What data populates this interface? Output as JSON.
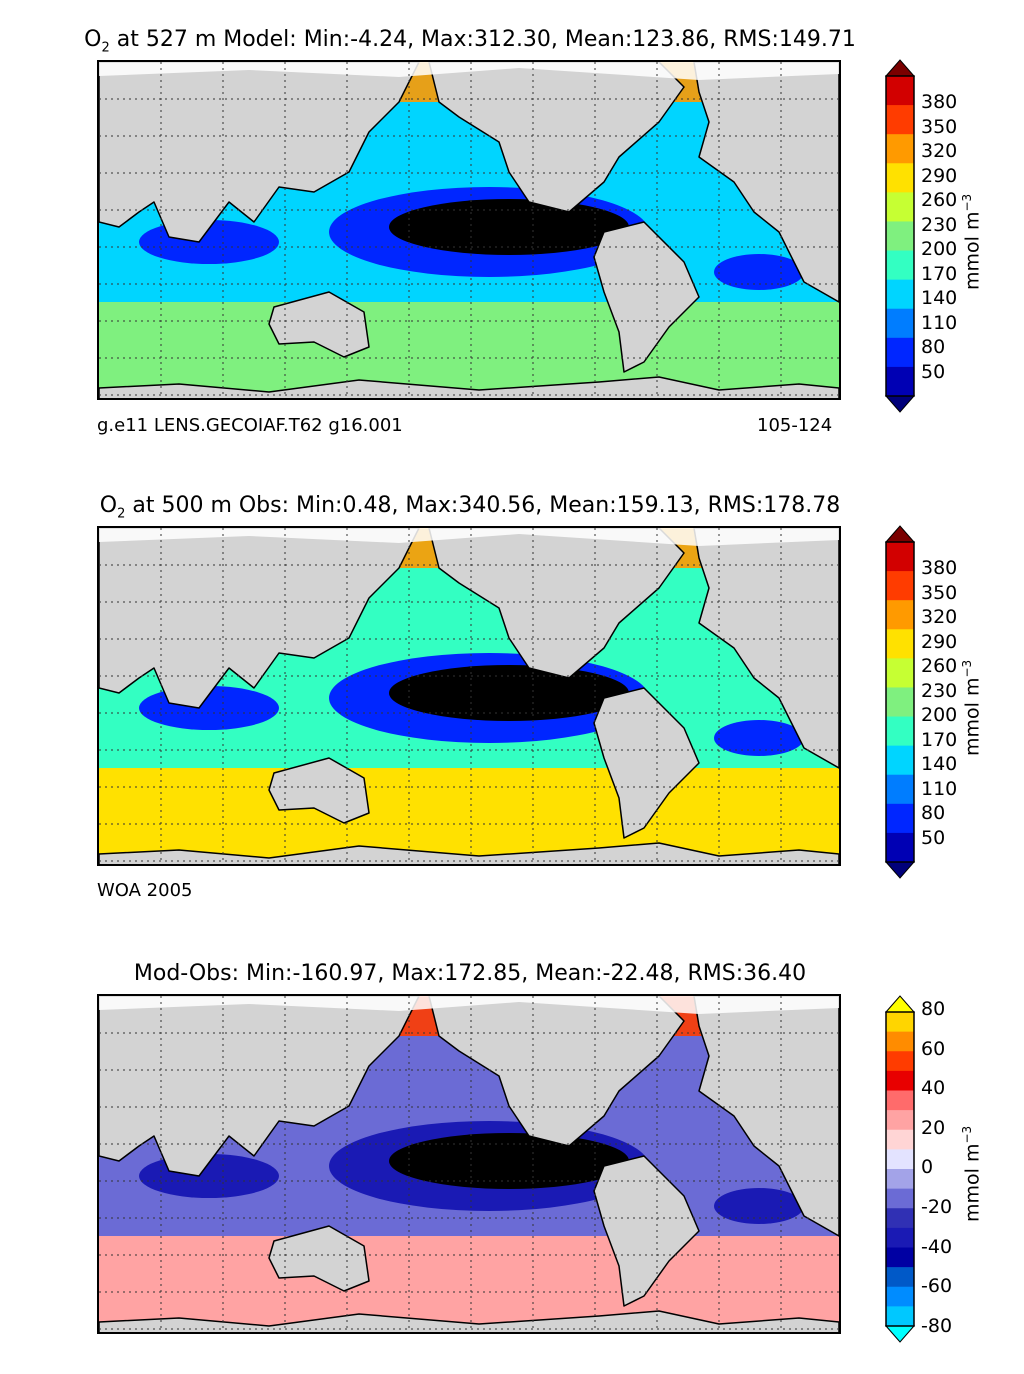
{
  "chart_data": [
    {
      "type": "heatmap",
      "title_species": "O",
      "title_sub": "2",
      "title_rest": " at 527 m Model: Min:-4.24, Max:312.30, Mean:123.86, RMS:149.71",
      "colorbar_ticks": [
        "380",
        "350",
        "320",
        "290",
        "260",
        "230",
        "200",
        "170",
        "140",
        "110",
        "80",
        "50"
      ],
      "colorbar_colors": [
        "#7a0000",
        "#d20000",
        "#ff3c00",
        "#ff9a00",
        "#ffe100",
        "#c6ff33",
        "#7ff07f",
        "#33ffc2",
        "#00d5ff",
        "#007dff",
        "#0026ff",
        "#0000b4",
        "#00007a"
      ],
      "unit_label": "mmol m",
      "unit_exp": "−3",
      "footer_left": "g.e11 LENS.GECOIAF.T62 g16.001",
      "footer_right": "105-124",
      "map_colors": {
        "land": "#d3d3d3",
        "ice": "#ffffff",
        "deep": "#000000",
        "low": "#0026ff",
        "mid": "#00d5ff",
        "high": "#7ff07f",
        "north": "#ff9a00"
      }
    },
    {
      "type": "heatmap",
      "title_species": "O",
      "title_sub": "2",
      "title_rest": " at 500 m Obs: Min:0.48, Max:340.56, Mean:159.13, RMS:178.78",
      "colorbar_ticks": [
        "380",
        "350",
        "320",
        "290",
        "260",
        "230",
        "200",
        "170",
        "140",
        "110",
        "80",
        "50"
      ],
      "colorbar_colors": [
        "#7a0000",
        "#d20000",
        "#ff3c00",
        "#ff9a00",
        "#ffe100",
        "#c6ff33",
        "#7ff07f",
        "#33ffc2",
        "#00d5ff",
        "#007dff",
        "#0026ff",
        "#0000b4",
        "#00007a"
      ],
      "unit_label": "mmol m",
      "unit_exp": "−3",
      "footer_left": "WOA 2005",
      "map_colors": {
        "land": "#d3d3d3",
        "ice": "#ffffff",
        "deep": "#000000",
        "low": "#0026ff",
        "mid": "#33ffc2",
        "high": "#ffe100",
        "north": "#ff9a00"
      }
    },
    {
      "type": "heatmap",
      "title_rest": "Mod-Obs: Min:-160.97, Max:172.85, Mean:-22.48, RMS:36.40",
      "colorbar_ticks": [
        "80",
        "60",
        "40",
        "20",
        "0",
        "-20",
        "-40",
        "-60",
        "-80"
      ],
      "colorbar_colors": [
        "#ffff00",
        "#ffd500",
        "#ff8c00",
        "#ff3c00",
        "#e80000",
        "#ff6b6b",
        "#ffa3a3",
        "#ffd5d5",
        "#e3e3ff",
        "#a3a3e8",
        "#6b6bd5",
        "#3030b4",
        "#1a1ab4",
        "#0000a3",
        "#0059c8",
        "#008cff",
        "#00c8ff",
        "#00ffff"
      ],
      "unit_label": "mmol m",
      "unit_exp": "−3",
      "map_colors": {
        "land": "#d3d3d3",
        "ice": "#ffffff",
        "deep": "#000000",
        "low": "#1a1ab4",
        "mid": "#6b6bd5",
        "high": "#ffa3a3",
        "north": "#ff3c00"
      }
    }
  ]
}
